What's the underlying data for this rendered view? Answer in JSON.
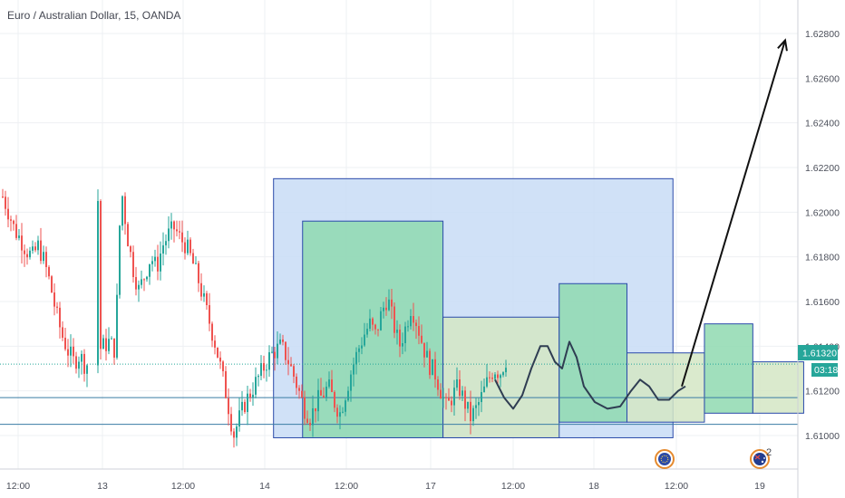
{
  "chart_data": {
    "type": "candlestick",
    "title": "Euro / Australian Dollar, 15, OANDA",
    "y_axis": {
      "ticks": [
        "1.62800",
        "1.62600",
        "1.62400",
        "1.62200",
        "1.62000",
        "1.61800",
        "1.61600",
        "1.61400",
        "1.61200",
        "1.61000"
      ],
      "ylim": [
        1.6085,
        1.6295
      ]
    },
    "x_axis": {
      "ticks": [
        "12:00",
        "13",
        "12:00",
        "14",
        "12:00",
        "17",
        "12:00",
        "18",
        "12:00",
        "19"
      ]
    },
    "current_price": {
      "value": 1.6132,
      "label": "1.61320",
      "countdown": "03:18"
    },
    "horizontal_lines": [
      1.6117,
      1.6105
    ],
    "candles_anchor_path": [
      [
        0,
        1.6207
      ],
      [
        1,
        1.62
      ],
      [
        2,
        1.6192
      ],
      [
        3,
        1.6188
      ],
      [
        4,
        1.6183
      ],
      [
        5,
        1.618
      ],
      [
        6,
        1.6185
      ],
      [
        7,
        1.6178
      ],
      [
        8,
        1.6168
      ],
      [
        9,
        1.6155
      ],
      [
        10,
        1.6145
      ],
      [
        11,
        1.6138
      ],
      [
        12,
        1.6133
      ],
      [
        13,
        1.6136
      ],
      [
        14,
        1.6131
      ],
      [
        15,
        1.6135
      ],
      [
        16,
        1.6138
      ],
      [
        17,
        1.614
      ],
      [
        18,
        1.6142
      ],
      [
        19,
        1.6138
      ],
      [
        20,
        1.6212
      ],
      [
        21,
        1.619
      ],
      [
        22,
        1.6175
      ],
      [
        23,
        1.6165
      ],
      [
        24,
        1.6172
      ],
      [
        25,
        1.618
      ],
      [
        26,
        1.6175
      ],
      [
        27,
        1.6185
      ],
      [
        28,
        1.619
      ],
      [
        29,
        1.6193
      ],
      [
        30,
        1.6188
      ],
      [
        31,
        1.6185
      ],
      [
        32,
        1.6178
      ],
      [
        33,
        1.617
      ],
      [
        34,
        1.616
      ],
      [
        35,
        1.615
      ],
      [
        36,
        1.614
      ],
      [
        37,
        1.6128
      ],
      [
        38,
        1.6115
      ],
      [
        39,
        1.61
      ],
      [
        40,
        1.6108
      ],
      [
        41,
        1.6115
      ],
      [
        42,
        1.612
      ],
      [
        43,
        1.6125
      ],
      [
        44,
        1.613
      ],
      [
        45,
        1.6135
      ],
      [
        46,
        1.6138
      ],
      [
        47,
        1.614
      ],
      [
        48,
        1.6135
      ],
      [
        49,
        1.6128
      ],
      [
        50,
        1.612
      ],
      [
        51,
        1.6112
      ],
      [
        52,
        1.6108
      ],
      [
        53,
        1.6115
      ],
      [
        54,
        1.6118
      ],
      [
        55,
        1.6122
      ],
      [
        56,
        1.6115
      ],
      [
        57,
        1.611
      ],
      [
        58,
        1.612
      ],
      [
        59,
        1.613
      ],
      [
        60,
        1.6138
      ],
      [
        61,
        1.6145
      ],
      [
        62,
        1.615
      ],
      [
        63,
        1.6145
      ],
      [
        64,
        1.6155
      ],
      [
        65,
        1.6162
      ],
      [
        66,
        1.615
      ],
      [
        67,
        1.614
      ],
      [
        68,
        1.6148
      ],
      [
        69,
        1.6158
      ],
      [
        70,
        1.615
      ],
      [
        71,
        1.614
      ],
      [
        72,
        1.6132
      ],
      [
        73,
        1.6128
      ],
      [
        74,
        1.612
      ],
      [
        75,
        1.6112
      ],
      [
        76,
        1.6118
      ],
      [
        77,
        1.6122
      ],
      [
        78,
        1.6115
      ],
      [
        79,
        1.6108
      ],
      [
        80,
        1.6112
      ],
      [
        81,
        1.6118
      ],
      [
        82,
        1.6125
      ],
      [
        83,
        1.613
      ],
      [
        84,
        1.6128
      ],
      [
        85,
        1.6134
      ]
    ],
    "shapes": {
      "range_rectangles": [
        {
          "color": "#c8dcf6",
          "border": "#2a4aaa",
          "from": [
            11.0,
            1.6215
          ],
          "to": [
            27.5,
            1.6099
          ]
        },
        {
          "color": "#8fd9b0",
          "border": "#2a4aaa",
          "from": [
            12.2,
            1.6196
          ],
          "to": [
            18.0,
            1.6099
          ]
        },
        {
          "color": "#d4e6c4",
          "border": "#2a4aaa",
          "from": [
            18.0,
            1.6153
          ],
          "to": [
            22.8,
            1.6099
          ]
        },
        {
          "color": "#8fd9b0",
          "border": "#2a4aaa",
          "from": [
            22.8,
            1.6168
          ],
          "to": [
            25.6,
            1.6106
          ]
        },
        {
          "color": "#d4e6c4",
          "border": "#2a4aaa",
          "from": [
            25.6,
            1.6137
          ],
          "to": [
            28.8,
            1.6106
          ]
        },
        {
          "color": "#8fd9b0",
          "border": "#2a4aaa",
          "from": [
            28.8,
            1.615
          ],
          "to": [
            30.8,
            1.611
          ]
        },
        {
          "color": "#d4e6c4",
          "border": "#2a4aaa",
          "from": [
            30.8,
            1.6133
          ],
          "to": [
            32.9,
            1.611
          ]
        }
      ]
    }
  },
  "icons": [
    "eu-flag-icon",
    "au-flag-icon"
  ],
  "au_event_count": "2",
  "colors": {
    "up": "#26a69a",
    "down": "#ef5350",
    "price_line": "#26a69a",
    "forecast": "#2f3d52"
  }
}
